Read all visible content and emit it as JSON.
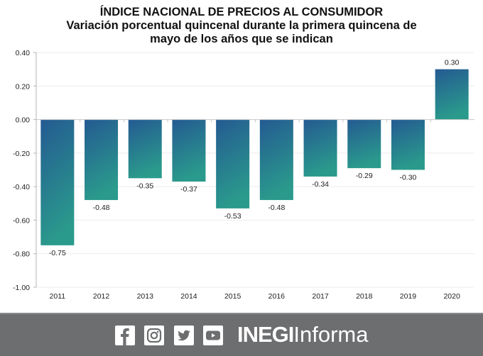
{
  "chart_data": {
    "type": "bar",
    "title": "ÍNDICE NACIONAL DE PRECIOS AL CONSUMIDOR",
    "subtitle_line1": "Variación porcentual quincenal durante la primera quincena de",
    "subtitle_line2": "mayo de los años que se indican",
    "xlabel": "",
    "ylabel": "",
    "categories": [
      "2011",
      "2012",
      "2013",
      "2014",
      "2015",
      "2016",
      "2017",
      "2018",
      "2019",
      "2020"
    ],
    "values": [
      -0.75,
      -0.48,
      -0.35,
      -0.37,
      -0.53,
      -0.48,
      -0.34,
      -0.29,
      -0.3,
      0.3
    ],
    "data_labels": [
      "-0.75",
      "-0.48",
      "-0.35",
      "-0.37",
      "-0.53",
      "-0.48",
      "-0.34",
      "-0.29",
      "-0.30",
      "0.30"
    ],
    "ylim": [
      -1.0,
      0.4
    ],
    "yticks": [
      0.4,
      0.2,
      0.0,
      -0.2,
      -0.4,
      -0.6,
      -0.8,
      -1.0
    ],
    "ytick_labels": [
      "0.40",
      "0.20",
      "0.00",
      "-0.20",
      "-0.40",
      "-0.60",
      "-0.80",
      "-1.00"
    ],
    "grid": true,
    "legend": "none",
    "bar_gradient": {
      "top": "#245a92",
      "bottom": "#2a9a8c"
    }
  },
  "footer": {
    "background": "#6d6e70",
    "social_icons": [
      "facebook-icon",
      "instagram-icon",
      "twitter-icon",
      "youtube-icon"
    ],
    "brand_bold": "INEGI",
    "brand_light": "Informa"
  }
}
